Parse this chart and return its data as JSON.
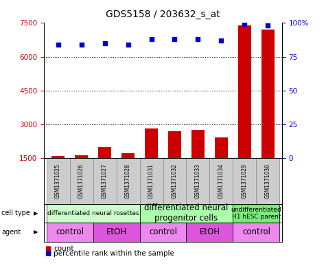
{
  "title": "GDS5158 / 203632_s_at",
  "samples": [
    "GSM1371025",
    "GSM1371026",
    "GSM1371027",
    "GSM1371028",
    "GSM1371031",
    "GSM1371032",
    "GSM1371033",
    "GSM1371034",
    "GSM1371029",
    "GSM1371030"
  ],
  "counts": [
    1600,
    1620,
    2000,
    1700,
    2800,
    2700,
    2750,
    2400,
    7400,
    7200
  ],
  "percentile_ranks": [
    84,
    84,
    85,
    84,
    88,
    88,
    88,
    87,
    99,
    98
  ],
  "bar_color": "#cc0000",
  "dot_color": "#0000cc",
  "ylim_left": [
    1500,
    7500
  ],
  "ylim_right": [
    0,
    100
  ],
  "yticks_left": [
    1500,
    3000,
    4500,
    6000,
    7500
  ],
  "yticks_right": [
    0,
    25,
    50,
    75,
    100
  ],
  "cell_type_groups": [
    {
      "label": "differentiated neural rosettes",
      "start": 0,
      "end": 3,
      "color": "#ccffcc",
      "fontsize": 6.5
    },
    {
      "label": "differentiated neural\nprogenitor cells",
      "start": 4,
      "end": 7,
      "color": "#aaffaa",
      "fontsize": 8.5
    },
    {
      "label": "undifferentiated\nH1 hESC parent",
      "start": 8,
      "end": 9,
      "color": "#77ee77",
      "fontsize": 6.5
    }
  ],
  "agent_groups": [
    {
      "label": "control",
      "start": 0,
      "end": 1,
      "color": "#ee88ee"
    },
    {
      "label": "EtOH",
      "start": 2,
      "end": 3,
      "color": "#dd55dd"
    },
    {
      "label": "control",
      "start": 4,
      "end": 5,
      "color": "#ee88ee"
    },
    {
      "label": "EtOH",
      "start": 6,
      "end": 7,
      "color": "#dd55dd"
    },
    {
      "label": "control",
      "start": 8,
      "end": 9,
      "color": "#ee88ee"
    }
  ],
  "left_axis_color": "#cc0000",
  "right_axis_color": "#0000cc",
  "background_color": "#ffffff",
  "bar_color_gray": "#cccccc",
  "bar_width": 0.55
}
